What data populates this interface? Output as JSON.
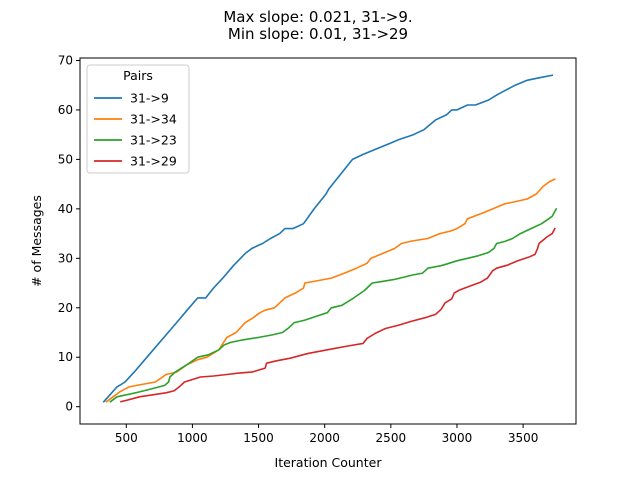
{
  "chart_data": {
    "type": "line",
    "title_lines": [
      "Max slope: 0.021, 31->9.",
      "Min slope: 0.01, 31->29"
    ],
    "xlabel": "Iteration Counter",
    "ylabel": "# of Messages",
    "xlim": [
      150,
      3900
    ],
    "ylim": [
      -3.5,
      70.5
    ],
    "xticks": [
      500,
      1000,
      1500,
      2000,
      2500,
      3000,
      3500
    ],
    "yticks": [
      0,
      10,
      20,
      30,
      40,
      50,
      60,
      70
    ],
    "grid": false,
    "legend": {
      "title": "Pairs",
      "placement": "top-left"
    },
    "series": [
      {
        "name": "31->9",
        "color": "#1f77b4",
        "points": [
          [
            330,
            1
          ],
          [
            380,
            2.5
          ],
          [
            430,
            4
          ],
          [
            490,
            5
          ],
          [
            560,
            7
          ],
          [
            640,
            9.5
          ],
          [
            720,
            12
          ],
          [
            800,
            14.5
          ],
          [
            880,
            17
          ],
          [
            960,
            19.5
          ],
          [
            1040,
            22
          ],
          [
            1100,
            22
          ],
          [
            1160,
            24
          ],
          [
            1230,
            26
          ],
          [
            1310,
            28.5
          ],
          [
            1400,
            31
          ],
          [
            1450,
            32
          ],
          [
            1530,
            33
          ],
          [
            1590,
            34
          ],
          [
            1660,
            35
          ],
          [
            1700,
            36
          ],
          [
            1760,
            36
          ],
          [
            1840,
            37
          ],
          [
            1920,
            40
          ],
          [
            2010,
            43
          ],
          [
            2030,
            44
          ],
          [
            2120,
            47
          ],
          [
            2210,
            50
          ],
          [
            2290,
            51
          ],
          [
            2380,
            52
          ],
          [
            2470,
            53
          ],
          [
            2560,
            54
          ],
          [
            2670,
            55
          ],
          [
            2750,
            56
          ],
          [
            2840,
            58
          ],
          [
            2920,
            59
          ],
          [
            2960,
            60
          ],
          [
            3000,
            60
          ],
          [
            3080,
            61
          ],
          [
            3140,
            61
          ],
          [
            3240,
            62
          ],
          [
            3300,
            63
          ],
          [
            3370,
            64
          ],
          [
            3440,
            65
          ],
          [
            3530,
            66
          ],
          [
            3620,
            66.5
          ],
          [
            3720,
            67
          ]
        ]
      },
      {
        "name": "31->34",
        "color": "#ff7f0e",
        "points": [
          [
            350,
            1
          ],
          [
            400,
            2
          ],
          [
            450,
            3
          ],
          [
            520,
            4
          ],
          [
            620,
            4.5
          ],
          [
            720,
            5
          ],
          [
            800,
            6.5
          ],
          [
            880,
            7
          ],
          [
            960,
            8.5
          ],
          [
            1040,
            9.5
          ],
          [
            1110,
            10
          ],
          [
            1200,
            11.5
          ],
          [
            1260,
            14
          ],
          [
            1330,
            15
          ],
          [
            1400,
            17
          ],
          [
            1460,
            18
          ],
          [
            1510,
            19
          ],
          [
            1550,
            19.5
          ],
          [
            1620,
            20
          ],
          [
            1700,
            22
          ],
          [
            1780,
            23
          ],
          [
            1840,
            24
          ],
          [
            1850,
            25
          ],
          [
            1950,
            25.5
          ],
          [
            2050,
            26
          ],
          [
            2150,
            27
          ],
          [
            2240,
            28
          ],
          [
            2320,
            29
          ],
          [
            2350,
            30
          ],
          [
            2440,
            31
          ],
          [
            2530,
            32
          ],
          [
            2580,
            33
          ],
          [
            2660,
            33.5
          ],
          [
            2780,
            34
          ],
          [
            2870,
            35
          ],
          [
            2950,
            35.5
          ],
          [
            3000,
            36
          ],
          [
            3060,
            37
          ],
          [
            3080,
            38
          ],
          [
            3180,
            39
          ],
          [
            3270,
            40
          ],
          [
            3360,
            41
          ],
          [
            3450,
            41.5
          ],
          [
            3530,
            42
          ],
          [
            3600,
            43
          ],
          [
            3650,
            44.5
          ],
          [
            3700,
            45.5
          ],
          [
            3740,
            46
          ]
        ]
      },
      {
        "name": "31->23",
        "color": "#2ca02c",
        "points": [
          [
            380,
            1
          ],
          [
            430,
            2
          ],
          [
            520,
            2.5
          ],
          [
            600,
            3
          ],
          [
            720,
            3.8
          ],
          [
            790,
            4.3
          ],
          [
            820,
            5
          ],
          [
            830,
            6
          ],
          [
            870,
            7
          ],
          [
            960,
            8.5
          ],
          [
            1040,
            10
          ],
          [
            1120,
            10.5
          ],
          [
            1200,
            11.5
          ],
          [
            1240,
            12.5
          ],
          [
            1290,
            13
          ],
          [
            1380,
            13.5
          ],
          [
            1500,
            14
          ],
          [
            1600,
            14.5
          ],
          [
            1680,
            15
          ],
          [
            1730,
            16
          ],
          [
            1770,
            17
          ],
          [
            1850,
            17.5
          ],
          [
            1960,
            18.5
          ],
          [
            2020,
            19
          ],
          [
            2050,
            20
          ],
          [
            2130,
            20.5
          ],
          [
            2220,
            22
          ],
          [
            2300,
            23.5
          ],
          [
            2360,
            25
          ],
          [
            2430,
            25.3
          ],
          [
            2520,
            25.7
          ],
          [
            2600,
            26.2
          ],
          [
            2660,
            26.6
          ],
          [
            2740,
            27
          ],
          [
            2780,
            28
          ],
          [
            2880,
            28.5
          ],
          [
            2940,
            29
          ],
          [
            3000,
            29.5
          ],
          [
            3080,
            30
          ],
          [
            3160,
            30.5
          ],
          [
            3240,
            31.2
          ],
          [
            3280,
            32
          ],
          [
            3300,
            33
          ],
          [
            3360,
            33.4
          ],
          [
            3420,
            34
          ],
          [
            3480,
            35
          ],
          [
            3560,
            36
          ],
          [
            3640,
            37
          ],
          [
            3720,
            38.5
          ],
          [
            3750,
            40
          ]
        ]
      },
      {
        "name": "31->29",
        "color": "#d62728",
        "points": [
          [
            460,
            1
          ],
          [
            530,
            1.5
          ],
          [
            600,
            2
          ],
          [
            700,
            2.4
          ],
          [
            800,
            2.8
          ],
          [
            860,
            3.2
          ],
          [
            900,
            4
          ],
          [
            940,
            5
          ],
          [
            1000,
            5.5
          ],
          [
            1060,
            6
          ],
          [
            1160,
            6.2
          ],
          [
            1260,
            6.5
          ],
          [
            1350,
            6.8
          ],
          [
            1450,
            7
          ],
          [
            1550,
            7.8
          ],
          [
            1560,
            8.8
          ],
          [
            1640,
            9.3
          ],
          [
            1740,
            9.8
          ],
          [
            1820,
            10.4
          ],
          [
            1880,
            10.8
          ],
          [
            1980,
            11.3
          ],
          [
            2080,
            11.8
          ],
          [
            2180,
            12.3
          ],
          [
            2290,
            12.8
          ],
          [
            2320,
            13.8
          ],
          [
            2380,
            14.8
          ],
          [
            2460,
            15.8
          ],
          [
            2560,
            16.5
          ],
          [
            2660,
            17.3
          ],
          [
            2760,
            18
          ],
          [
            2840,
            18.7
          ],
          [
            2880,
            19.7
          ],
          [
            2910,
            21
          ],
          [
            2960,
            21.8
          ],
          [
            2980,
            23
          ],
          [
            3020,
            23.6
          ],
          [
            3110,
            24.5
          ],
          [
            3180,
            25.2
          ],
          [
            3230,
            26
          ],
          [
            3270,
            27.5
          ],
          [
            3300,
            28
          ],
          [
            3380,
            28.6
          ],
          [
            3460,
            29.5
          ],
          [
            3540,
            30.2
          ],
          [
            3590,
            30.8
          ],
          [
            3610,
            32
          ],
          [
            3620,
            33
          ],
          [
            3680,
            34.3
          ],
          [
            3720,
            35
          ],
          [
            3740,
            36
          ]
        ]
      }
    ]
  }
}
